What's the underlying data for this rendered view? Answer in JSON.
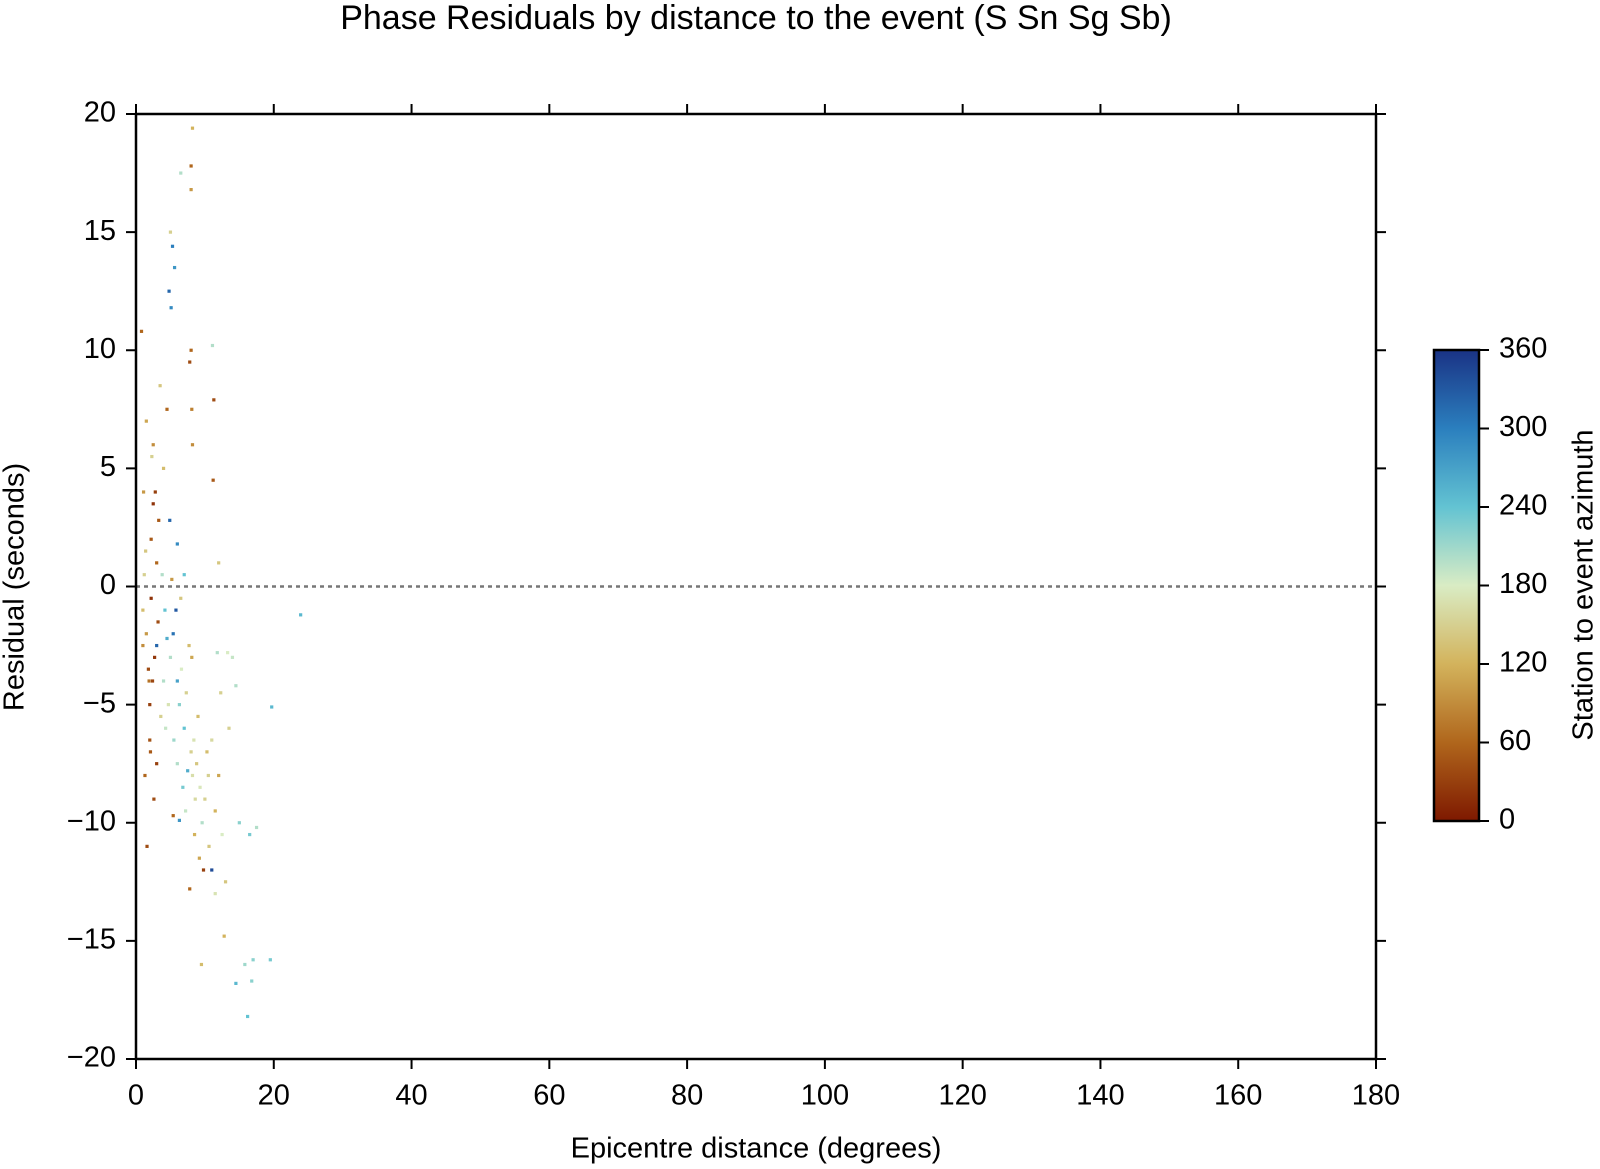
{
  "chart_data": {
    "type": "scatter",
    "title": "Phase Residuals by distance to the event (S Sn Sg Sb)",
    "x_label": "Epicentre distance (degrees)",
    "y_label": "Residual (seconds)",
    "colorbar_label": "Station to event azimuth",
    "xlim": [
      0,
      180
    ],
    "xticks": [
      0,
      20,
      40,
      60,
      80,
      100,
      120,
      140,
      160,
      180
    ],
    "ylim": [
      -20,
      20
    ],
    "yticks": [
      {
        "value": -20,
        "label": "−20"
      },
      {
        "value": -15,
        "label": "−15"
      },
      {
        "value": -10,
        "label": "−10"
      },
      {
        "value": -5,
        "label": "−5"
      },
      0,
      5,
      10,
      15,
      20
    ],
    "zlim": [
      0,
      360
    ],
    "zticks": [
      0,
      60,
      120,
      180,
      240,
      300,
      360
    ],
    "colormap": [
      "#7e1900",
      "#b0661c",
      "#d3b35c",
      "#d9ecc4",
      "#63c3d2",
      "#2b7fbe",
      "#1a3385"
    ],
    "hline": 0,
    "x": [
      1.0,
      1.2,
      1.5,
      1.8,
      2.0,
      2.2,
      2.5,
      2.8,
      3.0,
      3.2,
      2.4,
      2.0,
      2.1,
      1.3,
      1.6,
      0.8,
      1.5,
      2.5,
      3.5,
      4.0,
      4.5,
      5.0,
      5.3,
      5.6,
      4.8,
      5.1,
      6.5,
      8.0,
      8.0,
      8.2,
      8.0,
      7.8,
      8.1,
      8.2,
      11.1,
      11.3,
      11.2,
      12.0,
      3.8,
      4.2,
      4.5,
      5.0,
      5.4,
      5.8,
      6.0,
      6.3,
      6.6,
      7.0,
      7.3,
      7.7,
      8.0,
      8.2,
      8.4,
      8.6,
      8.8,
      9.0,
      9.3,
      9.6,
      10.0,
      10.3,
      10.6,
      11.0,
      11.5,
      12.0,
      12.5,
      13.0,
      13.5,
      14.0,
      14.5,
      15.0,
      16.5,
      17.5,
      15.8,
      17.0,
      19.5,
      14.5,
      16.2,
      16.8,
      19.7,
      23.9,
      9.5,
      12.8,
      11.5,
      9.8,
      7.8,
      6.3,
      5.4,
      3.0,
      2.2,
      1.0,
      1.4,
      3.3,
      2.7,
      3.6,
      4.0,
      4.3,
      4.7,
      5.5,
      6.0,
      6.8,
      7.2,
      7.5,
      8.5,
      9.2,
      10.5,
      11.0,
      12.3,
      11.8,
      13.3,
      4.9,
      6.0,
      7.0,
      6.5,
      5.2,
      3.0,
      2.6,
      1.9,
      1.1,
      2.3,
      8.1
    ],
    "values": [
      -1,
      0.5,
      -2,
      -3.5,
      -5,
      2,
      3.5,
      4,
      1,
      -1.5,
      -4,
      -6.5,
      -7,
      -8,
      -11,
      10.8,
      7,
      6,
      8.5,
      5,
      7.5,
      15,
      14.4,
      13.5,
      12.5,
      11.8,
      17.5,
      17.8,
      16.8,
      19.4,
      10,
      9.5,
      7.5,
      6,
      10.2,
      7.9,
      4.5,
      1,
      0.5,
      -1,
      -2.2,
      -3,
      -2,
      -1,
      -4,
      -5,
      -3.5,
      -6,
      -4.5,
      -2.5,
      -7,
      -8,
      -6.5,
      -9,
      -7.5,
      -5.5,
      -8.5,
      -10,
      -9,
      -7,
      -11,
      -12,
      -9.5,
      -8,
      -10.5,
      -12.5,
      -6,
      -3,
      -4.2,
      -10,
      -10.5,
      -10.2,
      -16,
      -15.8,
      -15.8,
      -16.8,
      -18.2,
      -16.7,
      -5.1,
      -1.2,
      -16,
      -14.8,
      -13,
      -12,
      -12.8,
      -9.9,
      -9.7,
      -2.5,
      -0.5,
      -2.5,
      1.5,
      2.8,
      -3,
      -5.5,
      -4,
      -6,
      -5,
      -6.5,
      -7.5,
      -8.5,
      -9.5,
      -7.8,
      -10.5,
      -11.5,
      -8,
      -6.5,
      -4.5,
      -2.8,
      -2.8,
      2.8,
      1.8,
      0.5,
      -0.5,
      0.3,
      -7.5,
      -9,
      -4,
      4,
      5.5,
      -3
    ],
    "color_values": [
      130,
      150,
      100,
      40,
      30,
      50,
      20,
      30,
      60,
      40,
      35,
      45,
      50,
      60,
      40,
      60,
      110,
      90,
      140,
      130,
      60,
      150,
      300,
      280,
      320,
      290,
      200,
      60,
      100,
      120,
      60,
      40,
      80,
      90,
      200,
      40,
      50,
      140,
      200,
      240,
      260,
      200,
      310,
      330,
      270,
      220,
      180,
      240,
      150,
      130,
      150,
      165,
      170,
      160,
      140,
      130,
      175,
      200,
      150,
      130,
      140,
      340,
      120,
      110,
      180,
      140,
      150,
      190,
      200,
      220,
      230,
      200,
      210,
      220,
      230,
      250,
      240,
      220,
      250,
      250,
      130,
      120,
      170,
      30,
      60,
      280,
      60,
      320,
      20,
      90,
      140,
      50,
      25,
      150,
      200,
      190,
      170,
      210,
      200,
      230,
      190,
      260,
      120,
      110,
      150,
      160,
      150,
      200,
      180,
      320,
      290,
      240,
      140,
      100,
      30,
      40,
      70,
      100,
      150,
      110
    ]
  }
}
